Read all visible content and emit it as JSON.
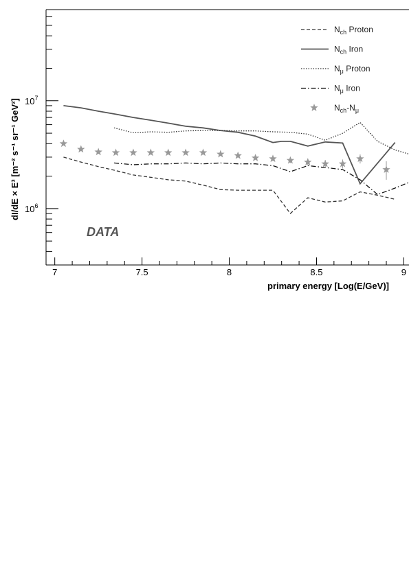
{
  "chart_data": {
    "type": "line",
    "xlabel": "primary energy [Log(E/GeV)]",
    "ylabel": "dI/dE × E³ [m⁻² s⁻¹ sr⁻¹ GeV²]",
    "xlim": [
      6.95,
      9.03
    ],
    "ylim": [
      300000,
      70000000
    ],
    "y_scale": "log",
    "grid": false,
    "legend_position": "top-right",
    "annotation": "DATA",
    "x_ticks": [
      {
        "value": 7,
        "label": "7"
      },
      {
        "value": 7.5,
        "label": "7.5"
      },
      {
        "value": 8,
        "label": "8"
      },
      {
        "value": 8.5,
        "label": "8.5"
      },
      {
        "value": 9,
        "label": "9"
      }
    ],
    "y_ticks": [
      {
        "value": 1000000,
        "base": "10",
        "exp": "6"
      },
      {
        "value": 10000000,
        "base": "10",
        "exp": "7"
      }
    ],
    "series": [
      {
        "name": "N_ch Proton",
        "label_main": "N",
        "label_sub": "ch",
        "label_rest": " Proton",
        "style": "dashed",
        "color": "#333333",
        "points": [
          [
            7.05,
            3000000
          ],
          [
            7.15,
            2700000
          ],
          [
            7.25,
            2450000
          ],
          [
            7.35,
            2250000
          ],
          [
            7.45,
            2050000
          ],
          [
            7.55,
            1950000
          ],
          [
            7.65,
            1850000
          ],
          [
            7.75,
            1800000
          ],
          [
            7.85,
            1650000
          ],
          [
            7.95,
            1500000
          ],
          [
            8.05,
            1480000
          ],
          [
            8.15,
            1480000
          ],
          [
            8.25,
            1480000
          ],
          [
            8.35,
            900000
          ],
          [
            8.45,
            1260000
          ],
          [
            8.55,
            1150000
          ],
          [
            8.65,
            1180000
          ],
          [
            8.75,
            1430000
          ],
          [
            8.85,
            1330000
          ],
          [
            8.95,
            1220000
          ]
        ]
      },
      {
        "name": "N_ch Iron",
        "label_main": "N",
        "label_sub": "ch",
        "label_rest": " Iron",
        "style": "solid",
        "color": "#555555",
        "points": [
          [
            7.05,
            9000000
          ],
          [
            7.15,
            8600000
          ],
          [
            7.25,
            8000000
          ],
          [
            7.35,
            7500000
          ],
          [
            7.45,
            7000000
          ],
          [
            7.55,
            6600000
          ],
          [
            7.65,
            6200000
          ],
          [
            7.75,
            5800000
          ],
          [
            7.85,
            5600000
          ],
          [
            7.95,
            5300000
          ],
          [
            8.05,
            5100000
          ],
          [
            8.15,
            4700000
          ],
          [
            8.25,
            4100000
          ],
          [
            8.3,
            4200000
          ],
          [
            8.35,
            4200000
          ],
          [
            8.45,
            3800000
          ],
          [
            8.55,
            4150000
          ],
          [
            8.65,
            4050000
          ],
          [
            8.75,
            1700000
          ],
          [
            8.95,
            4100000
          ]
        ]
      },
      {
        "name": "N_μ Proton",
        "label_main": "N",
        "label_sub": "μ",
        "label_rest": " Proton",
        "style": "dotted",
        "color": "#333333",
        "points": [
          [
            7.34,
            5600000
          ],
          [
            7.45,
            5050000
          ],
          [
            7.55,
            5150000
          ],
          [
            7.65,
            5100000
          ],
          [
            7.75,
            5250000
          ],
          [
            7.85,
            5300000
          ],
          [
            7.95,
            5300000
          ],
          [
            8.05,
            5250000
          ],
          [
            8.15,
            5250000
          ],
          [
            8.25,
            5150000
          ],
          [
            8.35,
            5100000
          ],
          [
            8.45,
            4900000
          ],
          [
            8.55,
            4300000
          ],
          [
            8.65,
            5000000
          ],
          [
            8.75,
            6300000
          ],
          [
            8.85,
            4200000
          ],
          [
            8.95,
            3500000
          ],
          [
            9.03,
            3200000
          ]
        ]
      },
      {
        "name": "N_μ Iron",
        "label_main": "N",
        "label_sub": "μ",
        "label_rest": " Iron",
        "style": "dashdot",
        "color": "#111111",
        "points": [
          [
            7.34,
            2650000
          ],
          [
            7.45,
            2550000
          ],
          [
            7.55,
            2600000
          ],
          [
            7.65,
            2600000
          ],
          [
            7.75,
            2650000
          ],
          [
            7.85,
            2600000
          ],
          [
            7.95,
            2650000
          ],
          [
            8.05,
            2600000
          ],
          [
            8.15,
            2600000
          ],
          [
            8.25,
            2500000
          ],
          [
            8.35,
            2200000
          ],
          [
            8.45,
            2500000
          ],
          [
            8.55,
            2400000
          ],
          [
            8.65,
            2300000
          ],
          [
            8.75,
            1850000
          ],
          [
            8.85,
            1350000
          ],
          [
            8.95,
            1550000
          ],
          [
            9.03,
            1750000
          ]
        ]
      },
      {
        "name": "N_ch-N_μ",
        "label_main": "N",
        "label_sub": "ch",
        "label_rest": "-N",
        "label_sub2": "μ",
        "style": "stars",
        "color": "#999999",
        "points": [
          [
            7.05,
            4000000
          ],
          [
            7.15,
            3550000
          ],
          [
            7.25,
            3350000
          ],
          [
            7.35,
            3300000
          ],
          [
            7.45,
            3300000
          ],
          [
            7.55,
            3300000
          ],
          [
            7.65,
            3300000
          ],
          [
            7.75,
            3300000
          ],
          [
            7.85,
            3300000
          ],
          [
            7.95,
            3200000
          ],
          [
            8.05,
            3100000
          ],
          [
            8.15,
            2950000
          ],
          [
            8.25,
            2900000
          ],
          [
            8.35,
            2800000
          ],
          [
            8.45,
            2700000
          ],
          [
            8.55,
            2600000
          ],
          [
            8.65,
            2600000
          ],
          [
            8.75,
            2900000
          ],
          [
            8.9,
            2300000
          ]
        ],
        "errors": [
          [
            7.05,
            0
          ],
          [
            7.15,
            0
          ],
          [
            7.25,
            0
          ],
          [
            7.35,
            0
          ],
          [
            7.45,
            0
          ],
          [
            7.55,
            0
          ],
          [
            7.65,
            0
          ],
          [
            7.75,
            0
          ],
          [
            7.85,
            0
          ],
          [
            7.95,
            0
          ],
          [
            8.05,
            0
          ],
          [
            8.15,
            0
          ],
          [
            8.25,
            130000
          ],
          [
            8.35,
            150000
          ],
          [
            8.45,
            200000
          ],
          [
            8.55,
            220000
          ],
          [
            8.65,
            250000
          ],
          [
            8.75,
            280000
          ],
          [
            8.9,
            450000
          ]
        ]
      }
    ]
  }
}
